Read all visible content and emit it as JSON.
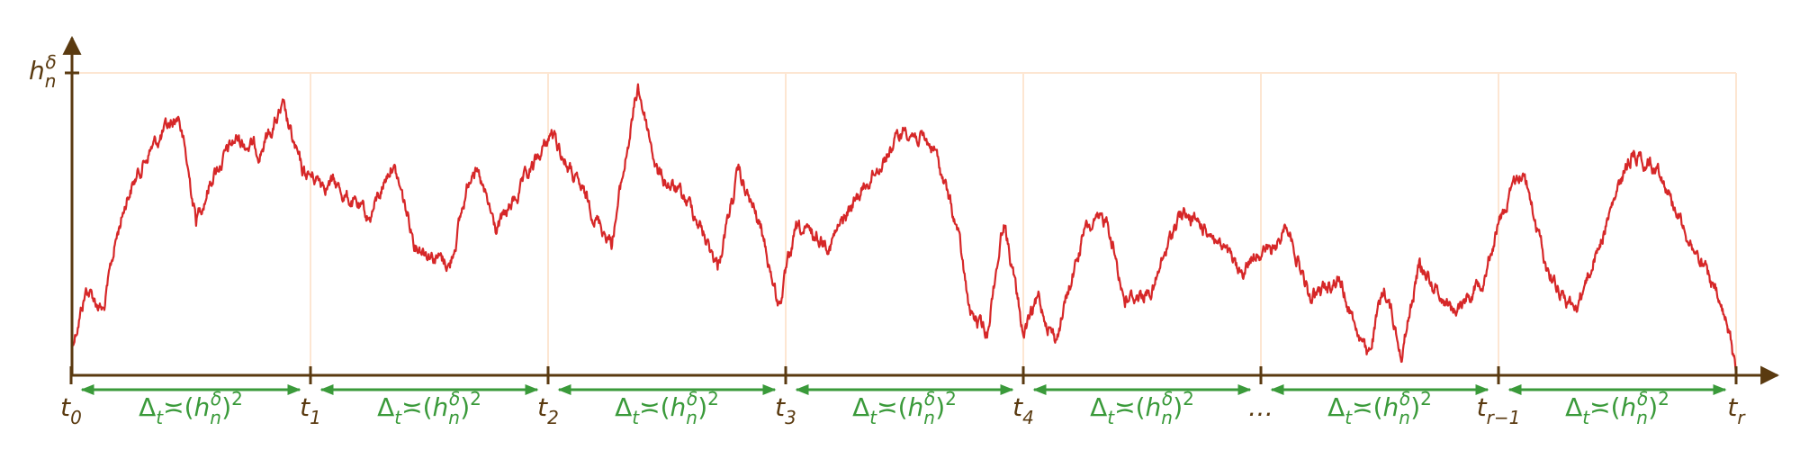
{
  "y_axis": {
    "label": {
      "base": "h",
      "sub": "n",
      "sup": "δ"
    }
  },
  "x_axis": {
    "ticks": [
      {
        "base": "t",
        "sub": "0"
      },
      {
        "base": "t",
        "sub": "1"
      },
      {
        "base": "t",
        "sub": "2"
      },
      {
        "base": "t",
        "sub": "3"
      },
      {
        "base": "t",
        "sub": "4"
      },
      {
        "base": "…"
      },
      {
        "base": "t",
        "sub": "r−1"
      },
      {
        "base": "t",
        "sub": "r"
      }
    ]
  },
  "interval_label": {
    "symbol": "Δ",
    "sub": "t",
    "relation": "≍",
    "open": "(",
    "base": "h",
    "base_sub": "n",
    "base_sup": "δ",
    "close": ")",
    "power": "2"
  }
}
